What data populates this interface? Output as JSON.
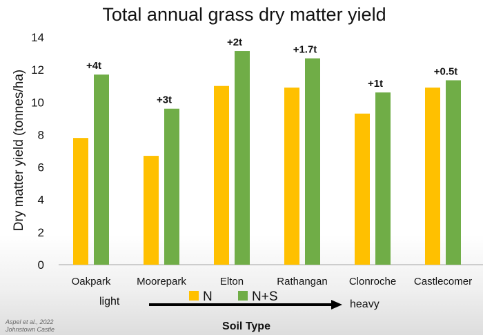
{
  "chart_data": {
    "type": "bar",
    "title": "Total annual grass dry matter yield",
    "ylabel": "Dry matter yield (tonnes/ha)",
    "xlabel": "Soil Type",
    "ylim": [
      0,
      14
    ],
    "yticks": [
      0,
      2,
      4,
      6,
      8,
      10,
      12,
      14
    ],
    "categories": [
      "Oakpark",
      "Moorepark",
      "Elton",
      "Rathangan",
      "Clonroche",
      "Castlecomer"
    ],
    "series": [
      {
        "name": "N",
        "color": "#FFC000",
        "values": [
          7.8,
          6.7,
          11.0,
          10.9,
          9.3,
          10.9
        ]
      },
      {
        "name": "N+S",
        "color": "#70AD47",
        "values": [
          11.7,
          9.6,
          13.15,
          12.7,
          10.6,
          11.35
        ]
      }
    ],
    "annotations": [
      "+4t",
      "+3t",
      "+2t",
      "+1.7t",
      "+1t",
      "+0.5t"
    ],
    "legend_position": "bottom",
    "grid": false
  },
  "scale": {
    "light_label": "light",
    "heavy_label": "heavy"
  },
  "citation": {
    "line1": "Aspel et al., 2022",
    "line2": "Johnstown Castle"
  }
}
